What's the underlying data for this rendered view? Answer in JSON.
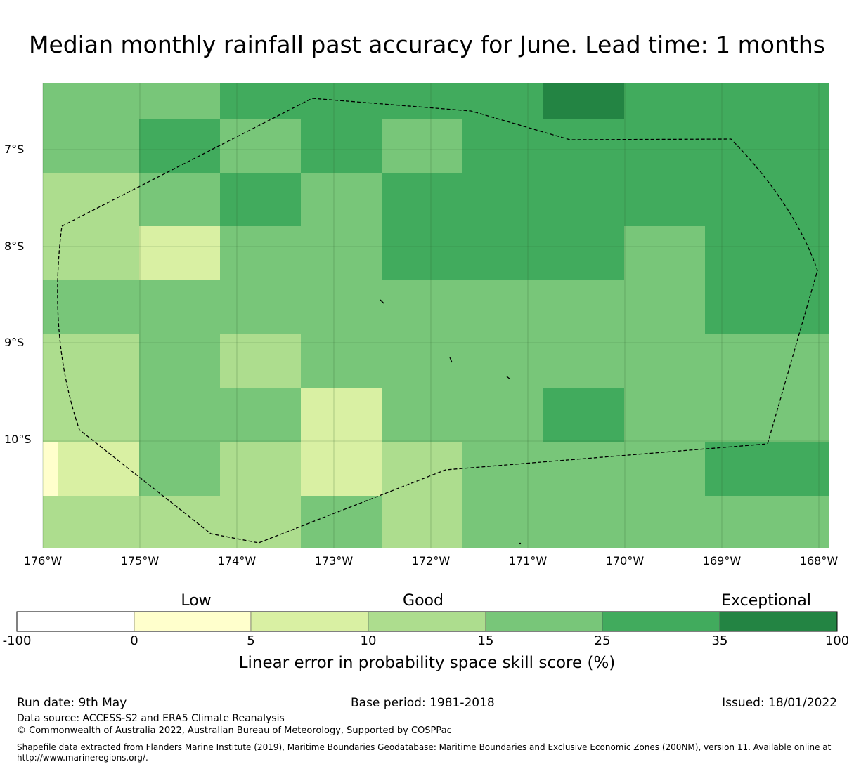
{
  "title": "Median monthly rainfall past accuracy for June. Lead time: 1 months",
  "map": {
    "lat_labels": [
      "7°S",
      "8°S",
      "9°S",
      "10°S"
    ],
    "lon_labels": [
      "176°W",
      "175°W",
      "174°W",
      "173°W",
      "172°W",
      "171°W",
      "170°W",
      "169°W",
      "168°W"
    ],
    "grid_category_rows": [
      [
        25,
        25,
        35,
        35,
        35,
        35,
        100,
        35,
        35
      ],
      [
        25,
        35,
        25,
        35,
        25,
        35,
        35,
        35,
        35
      ],
      [
        15,
        25,
        35,
        25,
        35,
        35,
        35,
        35,
        35
      ],
      [
        15,
        10,
        25,
        25,
        35,
        35,
        35,
        25,
        35
      ],
      [
        25,
        25,
        25,
        25,
        25,
        25,
        25,
        25,
        35
      ],
      [
        15,
        25,
        15,
        25,
        25,
        25,
        25,
        25,
        25
      ],
      [
        15,
        25,
        25,
        10,
        25,
        25,
        35,
        25,
        25
      ],
      [
        10,
        25,
        15,
        10,
        15,
        25,
        25,
        25,
        35
      ],
      [
        15,
        15,
        15,
        25,
        15,
        25,
        25,
        25,
        25
      ]
    ],
    "eez_boundary": "dashed"
  },
  "colorbar": {
    "categories": [
      "Low",
      "Good",
      "Exceptional"
    ],
    "ticks": [
      "-100",
      "0",
      "5",
      "10",
      "15",
      "25",
      "35",
      "100"
    ],
    "colors": [
      "#ffffff",
      "#ffffcc",
      "#d9f0a3",
      "#addd8e",
      "#78c679",
      "#41ab5d",
      "#238443"
    ],
    "label": "Linear error in probability space skill score (%)"
  },
  "footer": {
    "run_date": "Run date: 9th May",
    "base_period": "Base period: 1981-2018",
    "issued": "Issued: 18/01/2022",
    "data_source": "Data source: ACCESS-S2 and ERA5 Climate Reanalysis",
    "copyright": "© Commonwealth of Australia 2022, Australian Bureau of Meteorology, Supported by COSPPac",
    "shapefile_line1": "Shapefile data extracted from Flanders Marine Institute (2019), Maritime Boundaries Geodatabase: Maritime Boundaries and Exclusive Economic Zones (200NM), version 11. Available online at",
    "shapefile_line2": "http://www.marineregions.org/."
  }
}
